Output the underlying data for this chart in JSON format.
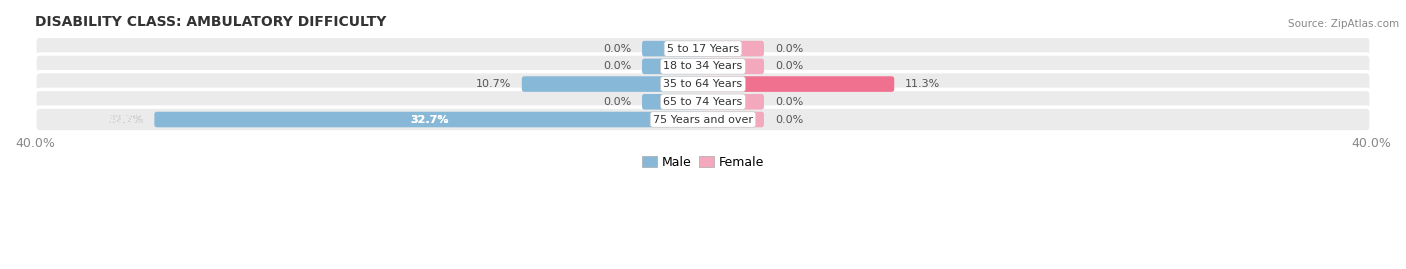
{
  "title": "DISABILITY CLASS: AMBULATORY DIFFICULTY",
  "source": "Source: ZipAtlas.com",
  "categories": [
    "5 to 17 Years",
    "18 to 34 Years",
    "35 to 64 Years",
    "65 to 74 Years",
    "75 Years and over"
  ],
  "male_values": [
    0.0,
    0.0,
    10.7,
    0.0,
    32.7
  ],
  "female_values": [
    0.0,
    0.0,
    11.3,
    0.0,
    0.0
  ],
  "max_value": 40.0,
  "stub_size": 3.5,
  "male_color": "#88b8d8",
  "female_color": "#f4a8be",
  "female_color_bright": "#f07090",
  "row_bg_color": "#ebebeb",
  "row_edge_color": "#d8d8d8",
  "label_color": "#555555",
  "title_color": "#333333",
  "source_color": "#888888",
  "axis_label_color": "#888888",
  "legend_male_color": "#88b8d8",
  "legend_female_color": "#f4a8be",
  "bar_height": 0.58,
  "figsize": [
    14.06,
    2.69
  ],
  "dpi": 100
}
